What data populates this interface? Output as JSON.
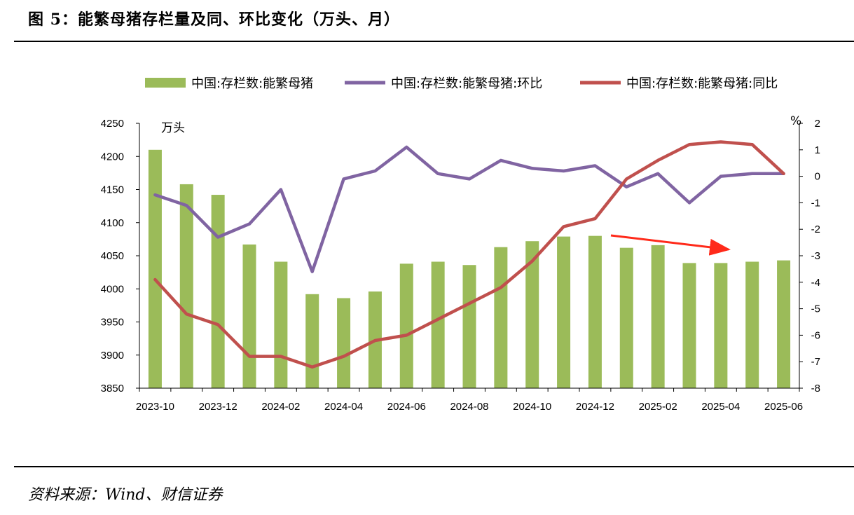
{
  "title": "图 5：能繁母猪存栏量及同、环比变化（万头、月）",
  "source": "资料来源：Wind、财信证券",
  "chart_data": {
    "type": "bar+line",
    "categories": [
      "2023-10",
      "2023-11",
      "2023-12",
      "2024-01",
      "2024-02",
      "2024-03",
      "2024-04",
      "2024-05",
      "2024-06",
      "2024-07",
      "2024-08",
      "2024-09",
      "2024-10",
      "2024-11",
      "2024-12",
      "2025-01",
      "2025-02",
      "2025-03",
      "2025-04",
      "2025-05",
      "2025-06"
    ],
    "x_tick_labels": [
      "2023-10",
      "2023-12",
      "2024-02",
      "2024-04",
      "2024-06",
      "2024-08",
      "2024-10",
      "2024-12",
      "2025-02",
      "2025-04",
      "2025-06"
    ],
    "left_axis": {
      "unit": "万头",
      "ylim": [
        3850,
        4250
      ],
      "ticks": [
        3850,
        3900,
        3950,
        4000,
        4050,
        4100,
        4150,
        4200,
        4250
      ]
    },
    "right_axis": {
      "unit": "%",
      "ylim": [
        -8,
        2
      ],
      "ticks": [
        -8,
        -7,
        -6,
        -5,
        -4,
        -3,
        -2,
        -1,
        0,
        1,
        2
      ]
    },
    "series": [
      {
        "name": "中国:存栏数:能繁母猪",
        "type": "bar",
        "axis": "left",
        "color": "#9bbb59",
        "values": [
          4210,
          4158,
          4142,
          4067,
          4041,
          3992,
          3986,
          3996,
          4038,
          4041,
          4036,
          4063,
          4072,
          4079,
          4080,
          4062,
          4066,
          4039,
          4039,
          4041,
          4043
        ]
      },
      {
        "name": "中国:存栏数:能繁母猪:环比",
        "type": "line",
        "axis": "right",
        "color": "#8064a2",
        "values": [
          -0.7,
          -1.1,
          -2.3,
          -1.8,
          -0.5,
          -3.6,
          -0.1,
          0.2,
          1.1,
          0.1,
          -0.1,
          0.6,
          0.3,
          0.2,
          0.4,
          -0.4,
          0.1,
          -1.0,
          0.0,
          0.1,
          0.1
        ]
      },
      {
        "name": "中国:存栏数:能繁母猪:同比",
        "type": "line",
        "axis": "right",
        "color": "#c0504d",
        "values": [
          -3.9,
          -5.2,
          -5.6,
          -6.8,
          -6.8,
          -7.2,
          -6.8,
          -6.2,
          -6.0,
          -5.4,
          -4.8,
          -4.2,
          -3.2,
          -1.9,
          -1.6,
          -0.1,
          0.6,
          1.2,
          1.3,
          1.2,
          0.1
        ]
      }
    ],
    "grid": false,
    "legend_position": "top",
    "annotation": "red trend arrow pointing down-right over 2024-12 to 2025-04 bars"
  }
}
